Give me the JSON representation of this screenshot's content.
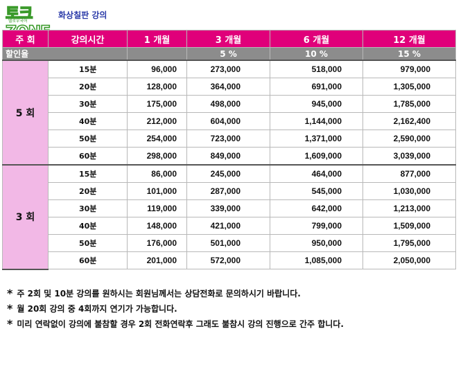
{
  "header": {
    "logo_text": "토크ZONE",
    "logo_sub": "텔로우국어",
    "title": "화상칠판 강의"
  },
  "table": {
    "headers": [
      "주 회",
      "강의시간",
      "1 개월",
      "3 개월",
      "6 개월",
      "12 개월"
    ],
    "discount": {
      "label": "할인율",
      "values": [
        "",
        "5 %",
        "10 %",
        "15 %"
      ]
    },
    "groups": [
      {
        "label": "5 회",
        "rows": [
          {
            "time": "15분",
            "m1": "96,000",
            "m3": "273,000",
            "m6": "518,000",
            "m12": "979,000"
          },
          {
            "time": "20분",
            "m1": "128,000",
            "m3": "364,000",
            "m6": "691,000",
            "m12": "1,305,000"
          },
          {
            "time": "30분",
            "m1": "175,000",
            "m3": "498,000",
            "m6": "945,000",
            "m12": "1,785,000"
          },
          {
            "time": "40분",
            "m1": "212,000",
            "m3": "604,000",
            "m6": "1,144,000",
            "m12": "2,162,400"
          },
          {
            "time": "50분",
            "m1": "254,000",
            "m3": "723,000",
            "m6": "1,371,000",
            "m12": "2,590,000"
          },
          {
            "time": "60분",
            "m1": "298,000",
            "m3": "849,000",
            "m6": "1,609,000",
            "m12": "3,039,000"
          }
        ]
      },
      {
        "label": "3 회",
        "rows": [
          {
            "time": "15분",
            "m1": "86,000",
            "m3": "245,000",
            "m6": "464,000",
            "m12": "877,000"
          },
          {
            "time": "20분",
            "m1": "101,000",
            "m3": "287,000",
            "m6": "545,000",
            "m12": "1,030,000"
          },
          {
            "time": "30분",
            "m1": "119,000",
            "m3": "339,000",
            "m6": "642,000",
            "m12": "1,213,000"
          },
          {
            "time": "40분",
            "m1": "148,000",
            "m3": "421,000",
            "m6": "799,000",
            "m12": "1,509,000"
          },
          {
            "time": "50분",
            "m1": "176,000",
            "m3": "501,000",
            "m6": "950,000",
            "m12": "1,795,000"
          },
          {
            "time": "60분",
            "m1": "201,000",
            "m3": "572,000",
            "m6": "1,085,000",
            "m12": "2,050,000"
          }
        ]
      }
    ]
  },
  "notes": {
    "bullet": "*",
    "items": [
      "주 2회 및 10분 강의를 원하시는 회원님께서는 상담전화로 문의하시기 바랍니다.",
      "월 20회 강의 중 4회까지 연기가 가능합니다.",
      "미리 연락없이 강의에 불참할 경우 2회 전화연락후 그래도 불참시 강의 진행으로 간주 합니다."
    ]
  },
  "colors": {
    "header_bg": "#e0007a",
    "discount_bg": "#8c8c8c",
    "group_bg": "#f2b8e6",
    "title_color": "#2a3aa8",
    "logo_color": "#3a9a2a"
  }
}
